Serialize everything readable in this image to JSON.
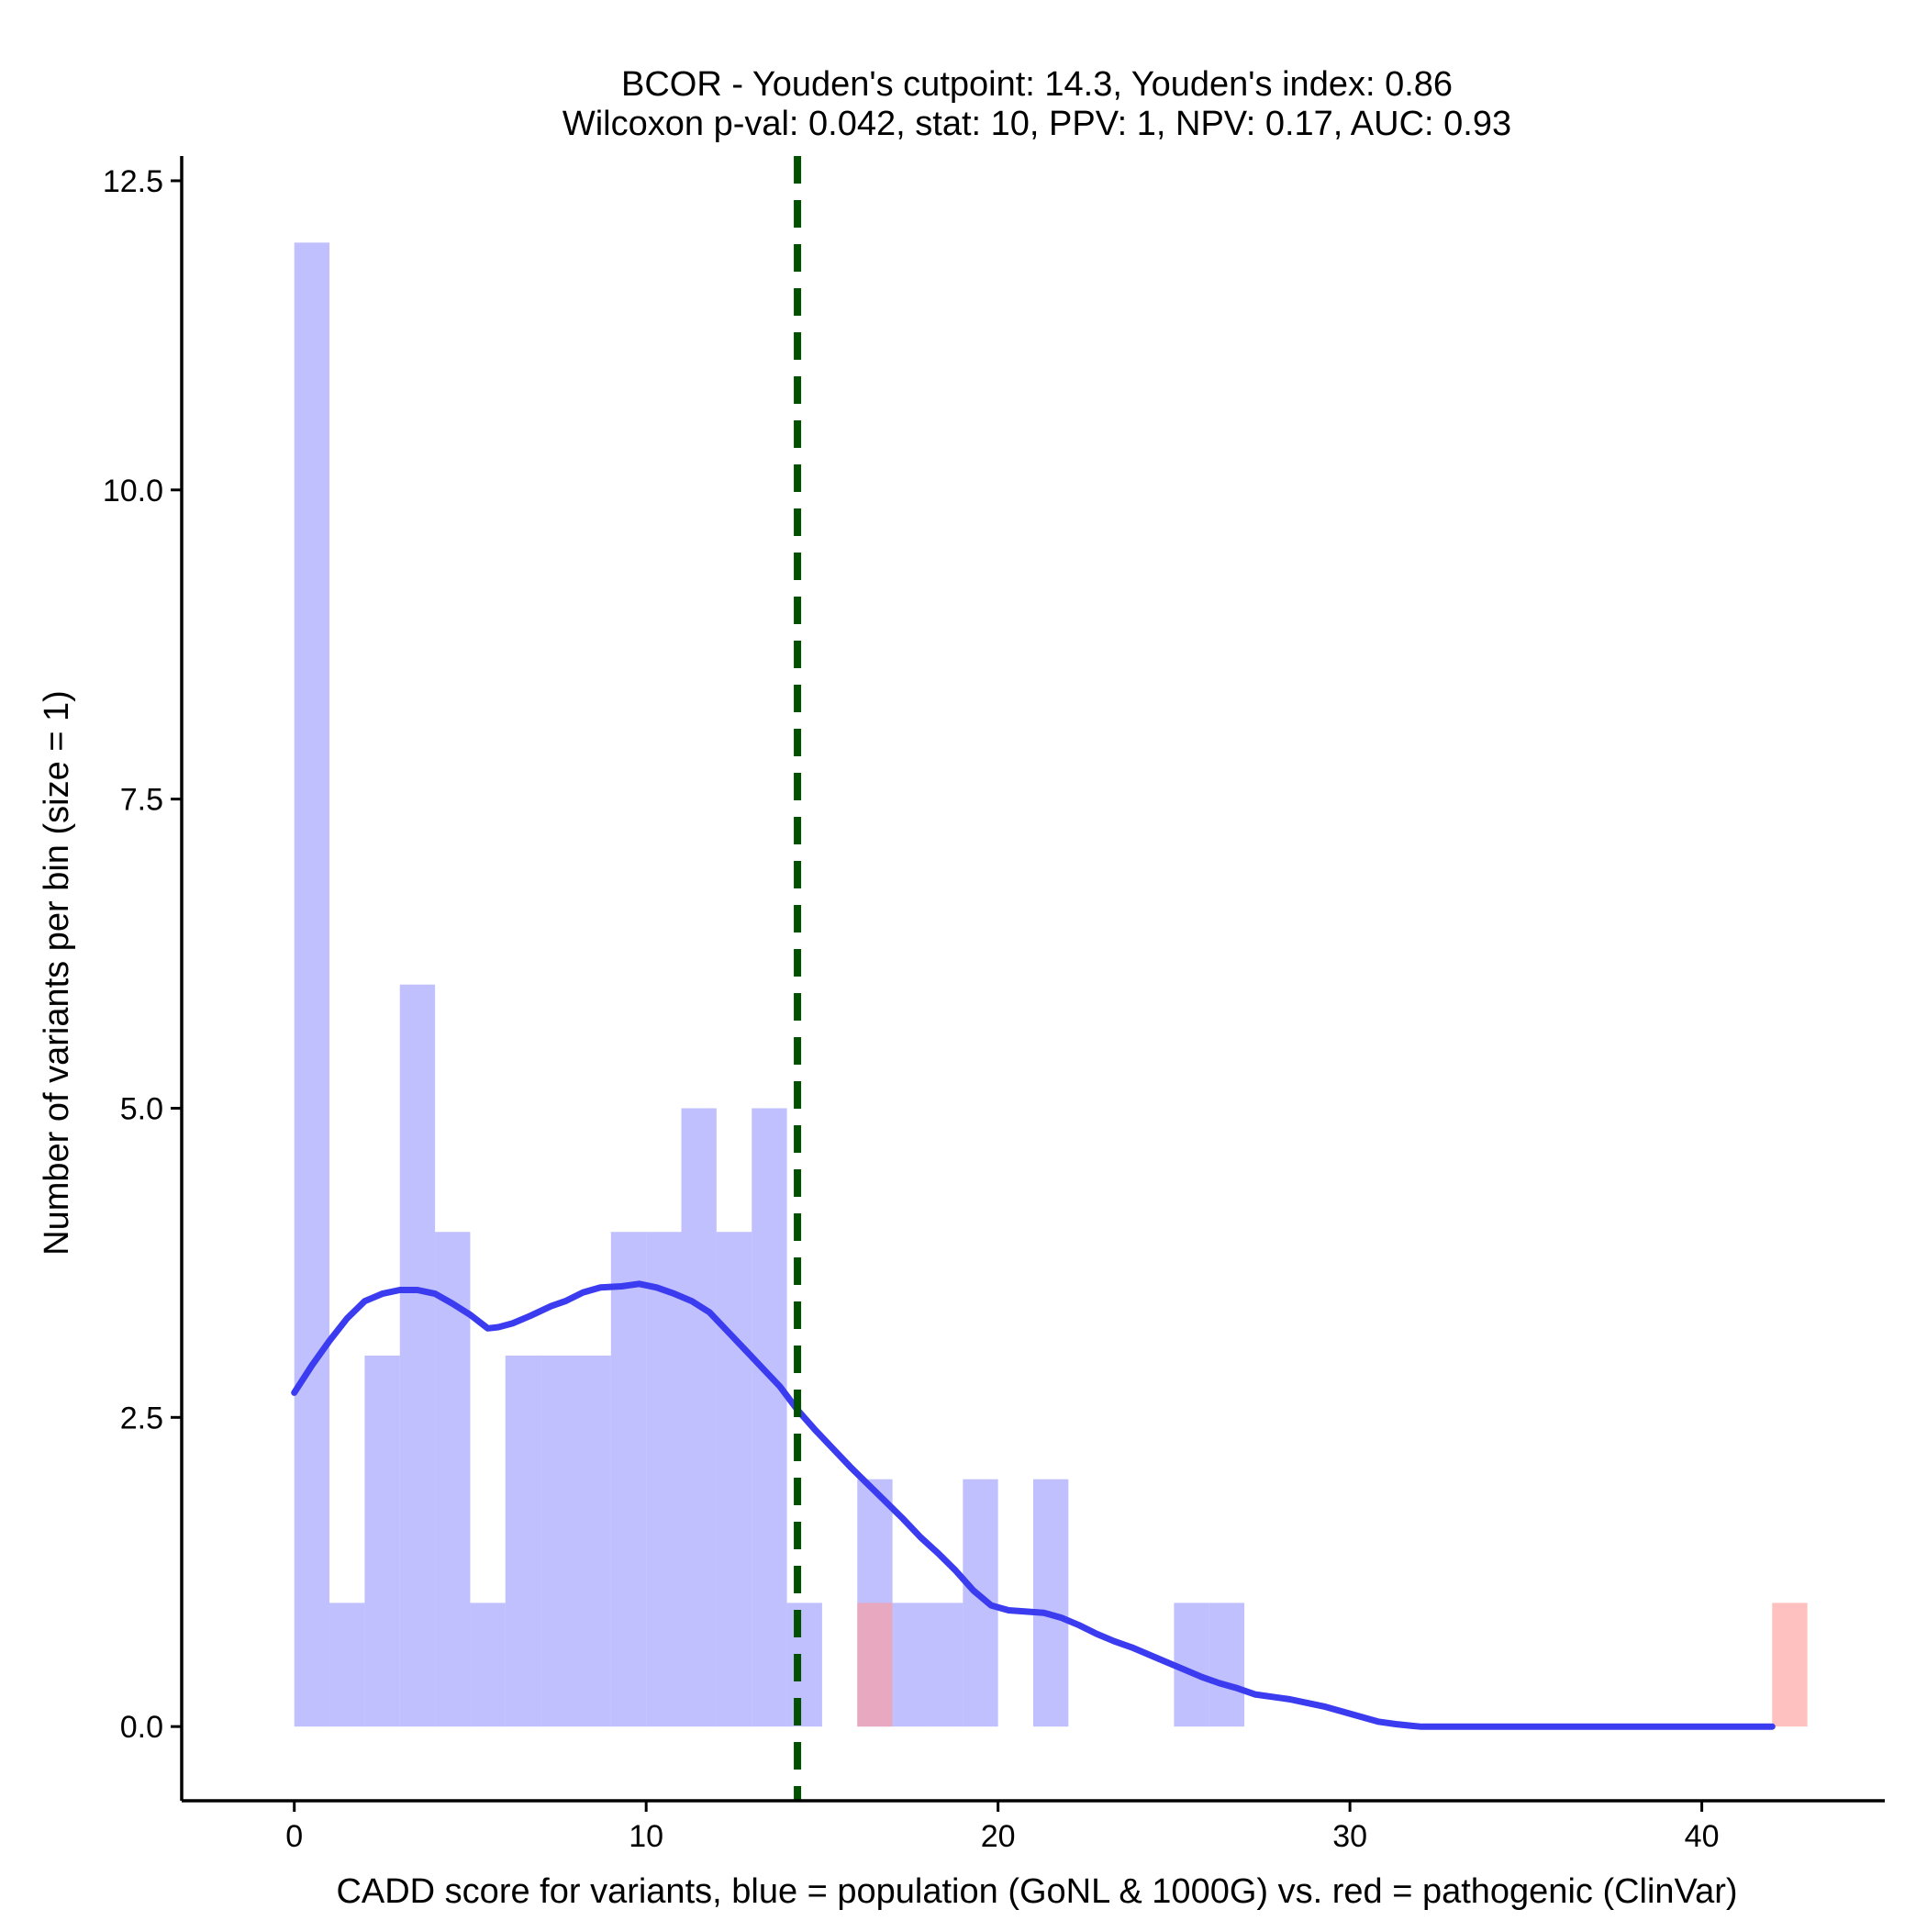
{
  "chart_data": {
    "type": "histogram",
    "title_line1": "BCOR - Youden's cutpoint: 14.3, Youden's index: 0.86",
    "title_line2": "Wilcoxon p-val: 0.042, stat: 10, PPV: 1, NPV: 0.17, AUC: 0.93",
    "xlabel": "CADD score for variants, blue = population (GoNL & 1000G) vs. red = pathogenic (ClinVar)",
    "ylabel": "Number of variants per bin (size = 1)",
    "xlim": [
      -3.2,
      45.2
    ],
    "ylim": [
      -0.6,
      12.7
    ],
    "x_ticks": [
      0,
      10,
      20,
      30,
      40
    ],
    "y_ticks": [
      0.0,
      2.5,
      5.0,
      7.5,
      10.0,
      12.5
    ],
    "bin_size": 1,
    "cutpoint": 14.3,
    "colors": {
      "population_bar": "#9999ff",
      "pathogenic_bar": "#ff9999",
      "density_line": "#3b3bf0",
      "cutpoint_line": "#005000",
      "axis": "#000000"
    },
    "series": [
      {
        "name": "population (GoNL & 1000G)",
        "bins": [
          {
            "x0": 0,
            "count": 12
          },
          {
            "x0": 1,
            "count": 1
          },
          {
            "x0": 2,
            "count": 3
          },
          {
            "x0": 3,
            "count": 6
          },
          {
            "x0": 4,
            "count": 4
          },
          {
            "x0": 5,
            "count": 1
          },
          {
            "x0": 6,
            "count": 3
          },
          {
            "x0": 7,
            "count": 3
          },
          {
            "x0": 8,
            "count": 3
          },
          {
            "x0": 9,
            "count": 4
          },
          {
            "x0": 10,
            "count": 4
          },
          {
            "x0": 11,
            "count": 5
          },
          {
            "x0": 12,
            "count": 4
          },
          {
            "x0": 13,
            "count": 5
          },
          {
            "x0": 14,
            "count": 1
          },
          {
            "x0": 16,
            "count": 2
          },
          {
            "x0": 17,
            "count": 1
          },
          {
            "x0": 18,
            "count": 1
          },
          {
            "x0": 19,
            "count": 2
          },
          {
            "x0": 21,
            "count": 2
          },
          {
            "x0": 25,
            "count": 1
          },
          {
            "x0": 26,
            "count": 1
          }
        ]
      },
      {
        "name": "pathogenic (ClinVar)",
        "bins": [
          {
            "x0": 16,
            "count": 1
          },
          {
            "x0": 42,
            "count": 1
          }
        ]
      }
    ],
    "density_curve": {
      "x": [
        0,
        0.5,
        1,
        1.5,
        2,
        2.5,
        3,
        3.5,
        4,
        4.5,
        5,
        5.5,
        5.8,
        6.2,
        6.7,
        7.3,
        7.7,
        8.2,
        8.7,
        9.3,
        9.8,
        10.3,
        10.8,
        11.3,
        11.8,
        12.3,
        12.8,
        13.3,
        13.8,
        14.3,
        14.8,
        15.3,
        15.8,
        16.3,
        16.8,
        17.3,
        17.8,
        18.3,
        18.8,
        19.3,
        19.8,
        20.3,
        20.8,
        21.3,
        21.8,
        22.3,
        22.8,
        23.3,
        23.8,
        24.3,
        24.8,
        25.3,
        25.8,
        26.3,
        26.8,
        27.3,
        27.8,
        28.3,
        28.8,
        29.3,
        29.8,
        30.3,
        30.8,
        31.3,
        31.8,
        32,
        34,
        36,
        38,
        40,
        42
      ],
      "y": [
        2.7,
        2.92,
        3.12,
        3.3,
        3.44,
        3.5,
        3.53,
        3.53,
        3.5,
        3.42,
        3.33,
        3.22,
        3.23,
        3.26,
        3.32,
        3.4,
        3.44,
        3.51,
        3.55,
        3.56,
        3.58,
        3.55,
        3.5,
        3.44,
        3.35,
        3.2,
        3.05,
        2.9,
        2.75,
        2.56,
        2.4,
        2.25,
        2.1,
        1.96,
        1.82,
        1.68,
        1.53,
        1.4,
        1.26,
        1.1,
        0.98,
        0.94,
        0.93,
        0.92,
        0.88,
        0.82,
        0.75,
        0.69,
        0.64,
        0.58,
        0.52,
        0.46,
        0.4,
        0.35,
        0.31,
        0.26,
        0.24,
        0.22,
        0.19,
        0.16,
        0.12,
        0.08,
        0.04,
        0.02,
        0.005,
        0,
        0,
        0,
        0,
        0,
        0
      ]
    }
  }
}
